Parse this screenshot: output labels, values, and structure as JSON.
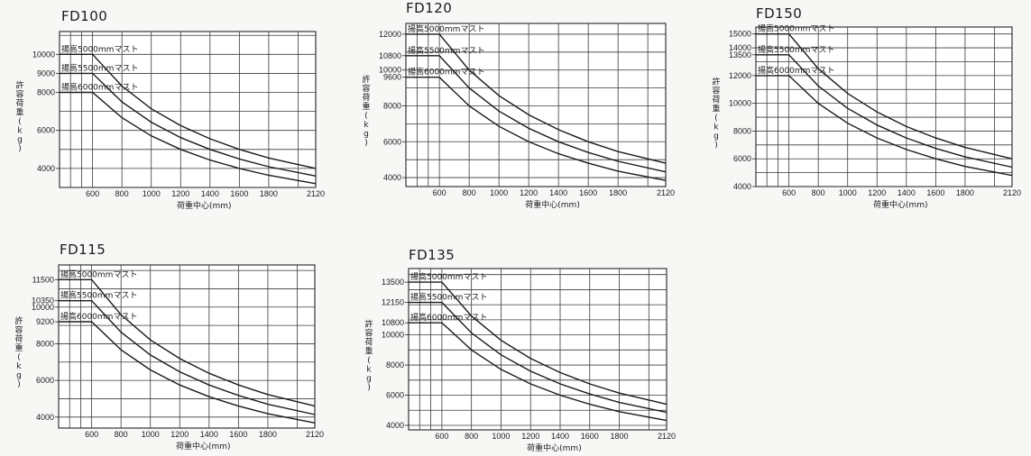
{
  "chart_data": [
    {
      "type": "line",
      "title": "FD100",
      "ylabel": "許容荷重(kg)",
      "xlabel": "荷重中心(mm)",
      "x_ticks": [
        "600",
        "800",
        "1000",
        "1200",
        "1400",
        "1600",
        "1800",
        "2120"
      ],
      "y_ticks": [
        "10000",
        "9000",
        "8000",
        "6000",
        "4000"
      ],
      "xlim": [
        375,
        2120
      ],
      "ylim": [
        3000,
        11200
      ],
      "grid": true,
      "series": [
        {
          "name": "揚高5000mmマスト",
          "x": [
            375,
            600,
            800,
            1000,
            1200,
            1400,
            1600,
            1800,
            2120
          ],
          "y": [
            10000,
            10000,
            8330,
            7140,
            6250,
            5560,
            5000,
            4550,
            4000
          ]
        },
        {
          "name": "揚高5500mmマスト",
          "x": [
            375,
            600,
            800,
            1000,
            1200,
            1400,
            1600,
            1800,
            2120
          ],
          "y": [
            9000,
            9000,
            7500,
            6430,
            5620,
            5000,
            4500,
            4090,
            3600
          ]
        },
        {
          "name": "揚高6000mmマスト",
          "x": [
            375,
            600,
            800,
            1000,
            1200,
            1400,
            1600,
            1800,
            2120
          ],
          "y": [
            8000,
            8000,
            6670,
            5710,
            5000,
            4440,
            4000,
            3640,
            3200
          ]
        }
      ]
    },
    {
      "type": "line",
      "title": "FD120",
      "ylabel": "許容荷重(kg)",
      "xlabel": "荷重中心(mm)",
      "x_ticks": [
        "600",
        "800",
        "1000",
        "1200",
        "1400",
        "1600",
        "1800",
        "2120"
      ],
      "y_ticks": [
        "12000",
        "10800",
        "10000",
        "9600",
        "8000",
        "6000",
        "4000"
      ],
      "xlim": [
        375,
        2120
      ],
      "ylim": [
        3500,
        12600
      ],
      "grid": true,
      "series": [
        {
          "name": "揚高5000mmマスト",
          "x": [
            375,
            600,
            800,
            1000,
            1200,
            1400,
            1600,
            1800,
            2120
          ],
          "y": [
            12000,
            12000,
            10000,
            8570,
            7500,
            6670,
            6000,
            5450,
            4800
          ]
        },
        {
          "name": "揚高5500mmマスト",
          "x": [
            375,
            600,
            800,
            1000,
            1200,
            1400,
            1600,
            1800,
            2120
          ],
          "y": [
            10800,
            10800,
            9000,
            7710,
            6750,
            6000,
            5400,
            4910,
            4320
          ]
        },
        {
          "name": "揚高6000mmマスト",
          "x": [
            375,
            600,
            800,
            1000,
            1200,
            1400,
            1600,
            1800,
            2120
          ],
          "y": [
            9600,
            9600,
            8000,
            6860,
            6000,
            5330,
            4800,
            4360,
            3840
          ]
        }
      ]
    },
    {
      "type": "line",
      "title": "FD150",
      "ylabel": "許容荷重(kg)",
      "xlabel": "荷重中心(mm)",
      "x_ticks": [
        "600",
        "800",
        "1000",
        "1200",
        "1400",
        "1600",
        "1800",
        "2120"
      ],
      "y_ticks": [
        "15000",
        "14000",
        "13500",
        "12000",
        "10000",
        "8000",
        "6000",
        "4000"
      ],
      "xlim": [
        375,
        2120
      ],
      "ylim": [
        4000,
        15500
      ],
      "grid": true,
      "series": [
        {
          "name": "揚高5000mmマスト",
          "x": [
            375,
            600,
            800,
            1000,
            1200,
            1400,
            1600,
            1800,
            2120
          ],
          "y": [
            15000,
            15000,
            12500,
            10710,
            9380,
            8330,
            7500,
            6820,
            6000
          ]
        },
        {
          "name": "揚高5500mmマスト",
          "x": [
            375,
            600,
            800,
            1000,
            1200,
            1400,
            1600,
            1800,
            2120
          ],
          "y": [
            13500,
            13500,
            11250,
            9640,
            8440,
            7500,
            6750,
            6140,
            5400
          ]
        },
        {
          "name": "揚高6000mmマスト",
          "x": [
            375,
            600,
            800,
            1000,
            1200,
            1400,
            1600,
            1800,
            2120
          ],
          "y": [
            12000,
            12000,
            10000,
            8570,
            7500,
            6670,
            6000,
            5450,
            4800
          ]
        }
      ]
    },
    {
      "type": "line",
      "title": "FD115",
      "ylabel": "許容荷重(kg)",
      "xlabel": "荷重中心(mm)",
      "x_ticks": [
        "600",
        "800",
        "1000",
        "1200",
        "1400",
        "1600",
        "1800",
        "2120"
      ],
      "y_ticks": [
        "11500",
        "10350",
        "10000",
        "9200",
        "8000",
        "6000",
        "4000"
      ],
      "xlim": [
        375,
        2120
      ],
      "ylim": [
        3400,
        12300
      ],
      "grid": true,
      "series": [
        {
          "name": "揚高5000mmマスト",
          "x": [
            375,
            600,
            800,
            1000,
            1200,
            1400,
            1600,
            1800,
            2120
          ],
          "y": [
            11500,
            11500,
            9580,
            8210,
            7190,
            6390,
            5750,
            5230,
            4600
          ]
        },
        {
          "name": "揚高5500mmマスト",
          "x": [
            375,
            600,
            800,
            1000,
            1200,
            1400,
            1600,
            1800,
            2120
          ],
          "y": [
            10350,
            10350,
            8630,
            7390,
            6470,
            5750,
            5180,
            4700,
            4140
          ]
        },
        {
          "name": "揚高6000mmマスト",
          "x": [
            375,
            600,
            800,
            1000,
            1200,
            1400,
            1600,
            1800,
            2120
          ],
          "y": [
            9200,
            9200,
            7670,
            6570,
            5750,
            5110,
            4600,
            4180,
            3680
          ]
        }
      ]
    },
    {
      "type": "line",
      "title": "FD135",
      "ylabel": "許容荷重(kg)",
      "xlabel": "荷重中心(mm)",
      "x_ticks": [
        "600",
        "800",
        "1000",
        "1200",
        "1400",
        "1600",
        "1800",
        "2120"
      ],
      "y_ticks": [
        "13500",
        "12150",
        "10800",
        "10000",
        "8000",
        "6000",
        "4000"
      ],
      "xlim": [
        375,
        2120
      ],
      "ylim": [
        3700,
        14400
      ],
      "grid": true,
      "series": [
        {
          "name": "揚高5000mmマスト",
          "x": [
            375,
            600,
            800,
            1000,
            1200,
            1400,
            1600,
            1800,
            2120
          ],
          "y": [
            13500,
            13500,
            11250,
            9640,
            8440,
            7500,
            6750,
            6140,
            5400
          ]
        },
        {
          "name": "揚高5500mmマスト",
          "x": [
            375,
            600,
            800,
            1000,
            1200,
            1400,
            1600,
            1800,
            2120
          ],
          "y": [
            12150,
            12150,
            10130,
            8680,
            7590,
            6750,
            6080,
            5520,
            4860
          ]
        },
        {
          "name": "揚高6000mmマスト",
          "x": [
            375,
            600,
            800,
            1000,
            1200,
            1400,
            1600,
            1800,
            2120
          ],
          "y": [
            10800,
            10800,
            9000,
            7710,
            6750,
            6000,
            5400,
            4910,
            4320
          ]
        }
      ]
    }
  ]
}
